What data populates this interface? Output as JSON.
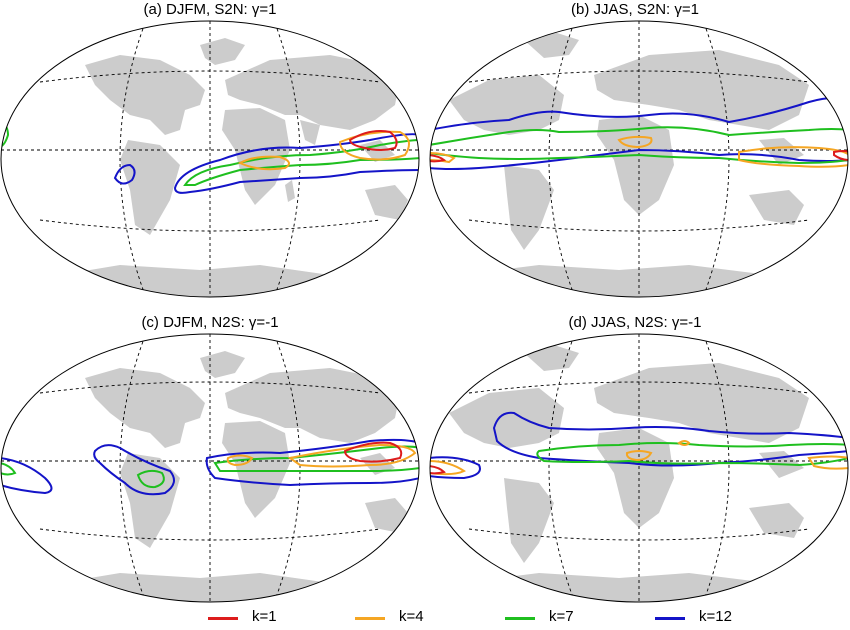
{
  "panels": [
    {
      "id": "a",
      "title": "(a) DJFM, S2N: γ=1"
    },
    {
      "id": "b",
      "title": "(b) JJAS, S2N: γ=1"
    },
    {
      "id": "c",
      "title": "(c) DJFM, N2S: γ=-1"
    },
    {
      "id": "d",
      "title": "(d) JJAS, N2S: γ=-1"
    }
  ],
  "legend": [
    {
      "label": "k=1",
      "color": "#dd1c1c"
    },
    {
      "label": "k=4",
      "color": "#f5a623"
    },
    {
      "label": "k=7",
      "color": "#1fbf1f"
    },
    {
      "label": "k=12",
      "color": "#1414c8"
    }
  ],
  "colors": {
    "land": "#cccccc",
    "gridline": "#000000",
    "ocean": "#ffffff"
  }
}
